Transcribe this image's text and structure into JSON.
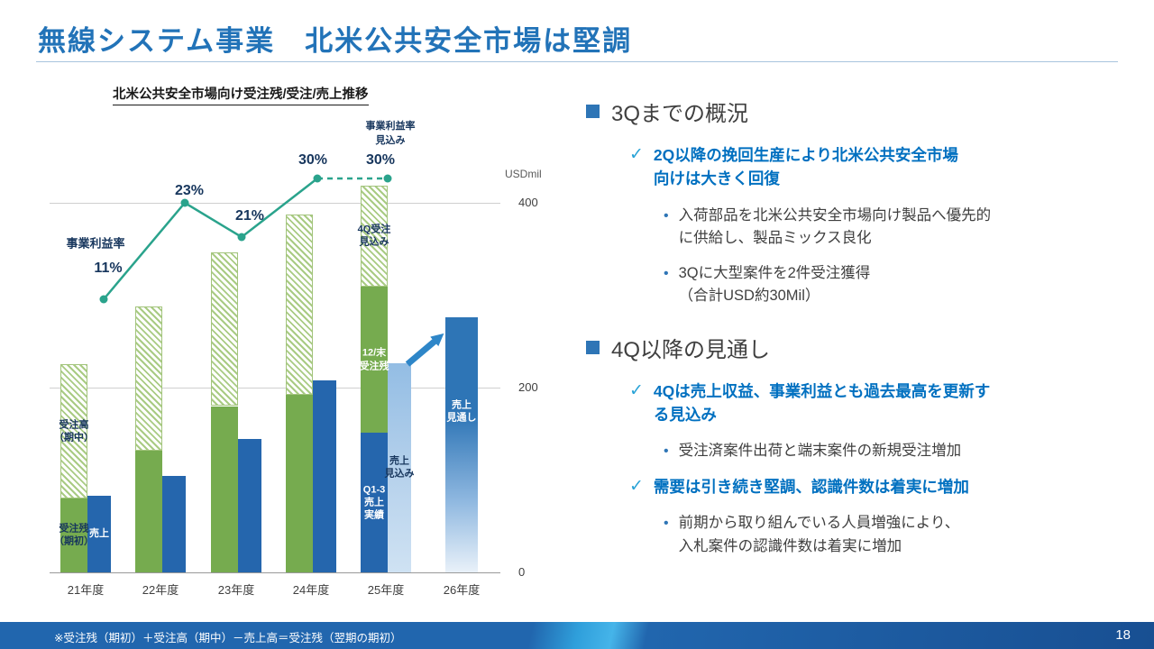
{
  "slide": {
    "title": "無線システム事業　北米公共安全市場は堅調",
    "page_number": "18",
    "footer_note": "※受注残（期初）＋受注高（期中）－売上高＝受注残（翌期の期初）"
  },
  "colors": {
    "title_blue": "#2273B8",
    "emphasis_blue": "#0070C0",
    "check_teal": "#29A3D7",
    "bullet_blue": "#2E75B6",
    "bar_green": "#76AB4F",
    "bar_blue": "#2566AD",
    "bar_lightblue": "#9CC2E6",
    "line_teal": "#2AA38C",
    "label_navy": "#17365D",
    "arrow_blue": "#2E86C8"
  },
  "chart_data": {
    "type": "bar",
    "title": "北米公共安全市場向け受注残/受注/売上推移",
    "unit_label": "USDmil",
    "yticks": [
      0,
      200,
      400
    ],
    "ylim": [
      0,
      430
    ],
    "grid": true,
    "axis_side": "right",
    "categories": [
      "21年度",
      "22年度",
      "23年度",
      "24年度",
      "25年度",
      "26年度"
    ],
    "groups": [
      {
        "category": "21年度",
        "stack": [
          {
            "label": "受注残\n（期初）",
            "value": 80,
            "fill": "green",
            "label_color": "navy"
          },
          {
            "label": "受注高\n（期中）",
            "value": 145,
            "fill": "hatch",
            "label_color": "navy"
          }
        ],
        "bar2": {
          "label": "売上",
          "value": 83,
          "fill": "blue",
          "label_color": "white"
        }
      },
      {
        "category": "22年度",
        "stack": [
          {
            "label": "",
            "value": 132,
            "fill": "green"
          },
          {
            "label": "",
            "value": 156,
            "fill": "hatch"
          }
        ],
        "bar2": {
          "label": "",
          "value": 104,
          "fill": "blue"
        }
      },
      {
        "category": "23年度",
        "stack": [
          {
            "label": "",
            "value": 180,
            "fill": "green"
          },
          {
            "label": "",
            "value": 166,
            "fill": "hatch"
          }
        ],
        "bar2": {
          "label": "",
          "value": 144,
          "fill": "blue"
        }
      },
      {
        "category": "24年度",
        "stack": [
          {
            "label": "",
            "value": 192,
            "fill": "green"
          },
          {
            "label": "",
            "value": 195,
            "fill": "hatch"
          }
        ],
        "bar2": {
          "label": "",
          "value": 208,
          "fill": "blue"
        }
      },
      {
        "category": "25年度",
        "stack": [
          {
            "label": "Q1-3\n売上\n実績",
            "value": 151,
            "fill": "blue",
            "label_color": "white"
          },
          {
            "label": "12/末\n受注残",
            "value": 158,
            "fill": "green",
            "label_color": "white"
          },
          {
            "label": "4Q受注\n見込み",
            "value": 110,
            "fill": "hatch",
            "label_color": "navy"
          }
        ],
        "bar2": {
          "label": "売上\n見込み",
          "value": 226,
          "fill": "lightblue",
          "label_color": "navy"
        }
      },
      {
        "category": "26年度",
        "stack": [],
        "bar2": {
          "label": "売上\n見通し",
          "value": 276,
          "fill": "bluegrad",
          "label_color": "white",
          "label_at": 0.37
        }
      }
    ],
    "line": {
      "label": "事業利益率",
      "forecast_label": "事業利益率\n見込み",
      "values_percent": [
        11,
        23,
        21,
        30,
        30
      ],
      "value_labels": [
        "11%",
        "23%",
        "21%",
        "30%",
        "30%"
      ],
      "dashed_segment_start_index": 3
    }
  },
  "sections": [
    {
      "heading": "3Qまでの概況",
      "items": [
        {
          "type": "check",
          "text": "2Q以降の挽回生産により北米公共安全市場\n向けは大きく回復"
        },
        {
          "type": "bullet",
          "text": "入荷部品を北米公共安全市場向け製品へ優先的\nに供給し、製品ミックス良化"
        },
        {
          "type": "bullet",
          "text": "3Qに大型案件を2件受注獲得\n（合計USD約30Mil）"
        }
      ]
    },
    {
      "heading": "4Q以降の見通し",
      "items": [
        {
          "type": "check",
          "text": "4Qは売上収益、事業利益とも過去最高を更新す\nる見込み"
        },
        {
          "type": "bullet",
          "text": "受注済案件出荷と端末案件の新規受注増加"
        },
        {
          "type": "check",
          "text": "需要は引き続き堅調、認識件数は着実に増加"
        },
        {
          "type": "bullet",
          "text": "前期から取り組んでいる人員増強により、\n入札案件の認識件数は着実に増加"
        }
      ]
    }
  ]
}
